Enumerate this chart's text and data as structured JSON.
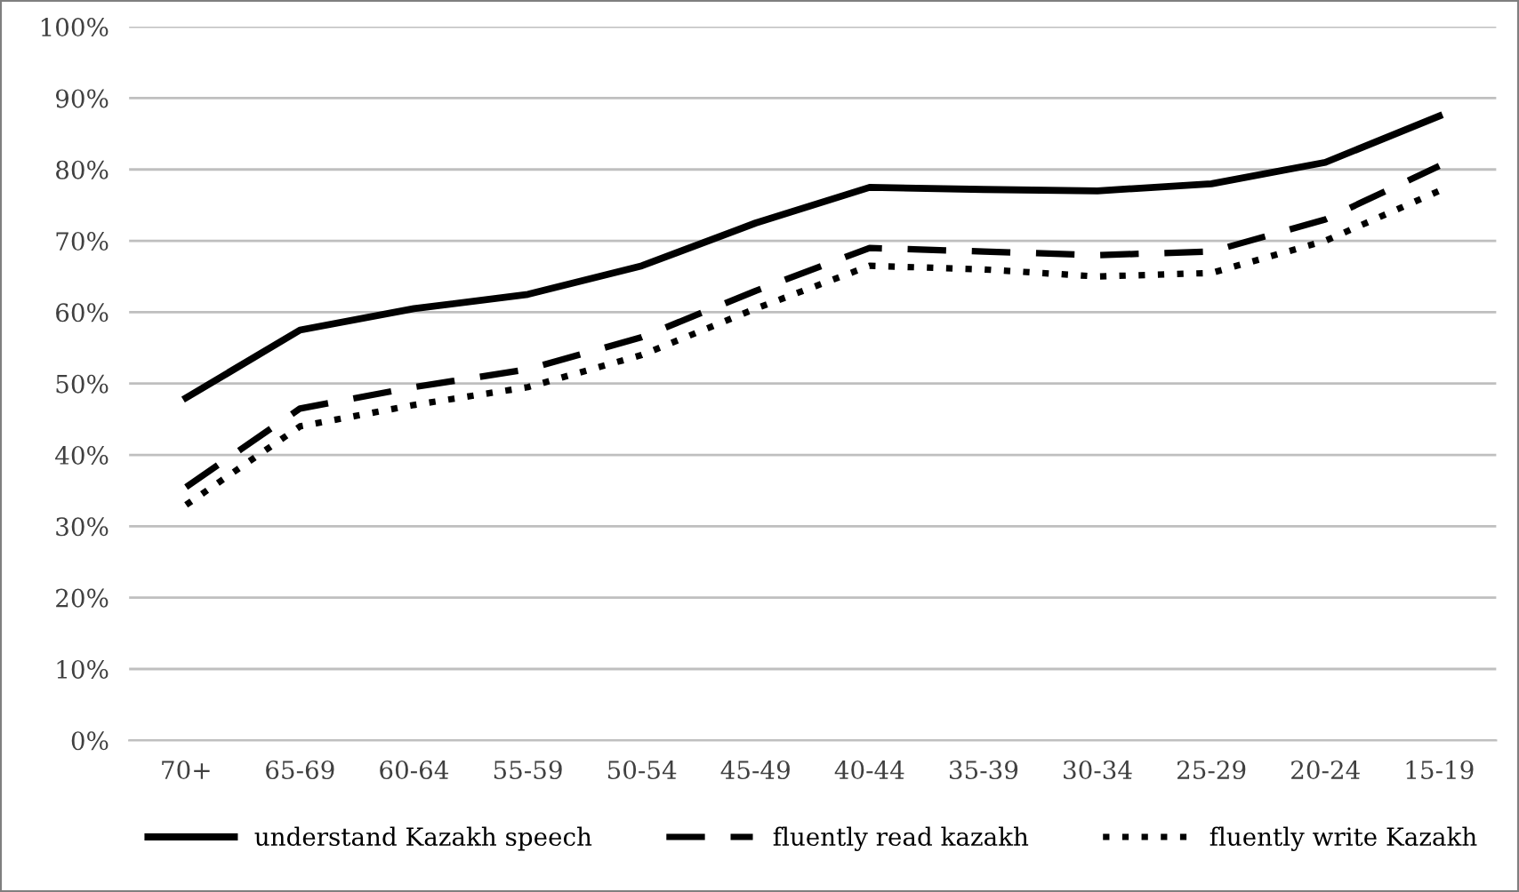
{
  "chart_data": {
    "type": "line",
    "categories": [
      "70+",
      "65-69",
      "60-64",
      "55-59",
      "50-54",
      "45-49",
      "40-44",
      "35-39",
      "30-34",
      "25-29",
      "20-24",
      "15-19"
    ],
    "series": [
      {
        "name": "understand Kazakh speech",
        "color": "#000000",
        "line_style": "solid",
        "values": [
          48,
          57.5,
          60.5,
          62.5,
          66.5,
          72.5,
          77.5,
          77.2,
          77,
          78,
          81,
          87.5
        ]
      },
      {
        "name": "fluently read kazakh",
        "color": "#000000",
        "line_style": "dashed",
        "values": [
          35.5,
          46.5,
          49.5,
          52,
          56.5,
          63,
          69,
          68.5,
          68,
          68.5,
          73,
          80.5
        ]
      },
      {
        "name": "fluently write Kazakh",
        "color": "#000000",
        "line_style": "dotted",
        "values": [
          33,
          44,
          47,
          49.5,
          54,
          60.5,
          66.5,
          66,
          65,
          65.5,
          70,
          77
        ]
      }
    ],
    "ylim": [
      0,
      100
    ],
    "yticks": [
      {
        "value": 0,
        "label": "0%"
      },
      {
        "value": 10,
        "label": "10%"
      },
      {
        "value": 20,
        "label": "20%"
      },
      {
        "value": 30,
        "label": "30%"
      },
      {
        "value": 40,
        "label": "40%"
      },
      {
        "value": 50,
        "label": "50%"
      },
      {
        "value": 60,
        "label": "60%"
      },
      {
        "value": 70,
        "label": "70%"
      },
      {
        "value": 80,
        "label": "80%"
      },
      {
        "value": 90,
        "label": "90%"
      },
      {
        "value": 100,
        "label": "100%"
      }
    ],
    "grid": "y",
    "legend": "bottom",
    "marker": "none"
  }
}
